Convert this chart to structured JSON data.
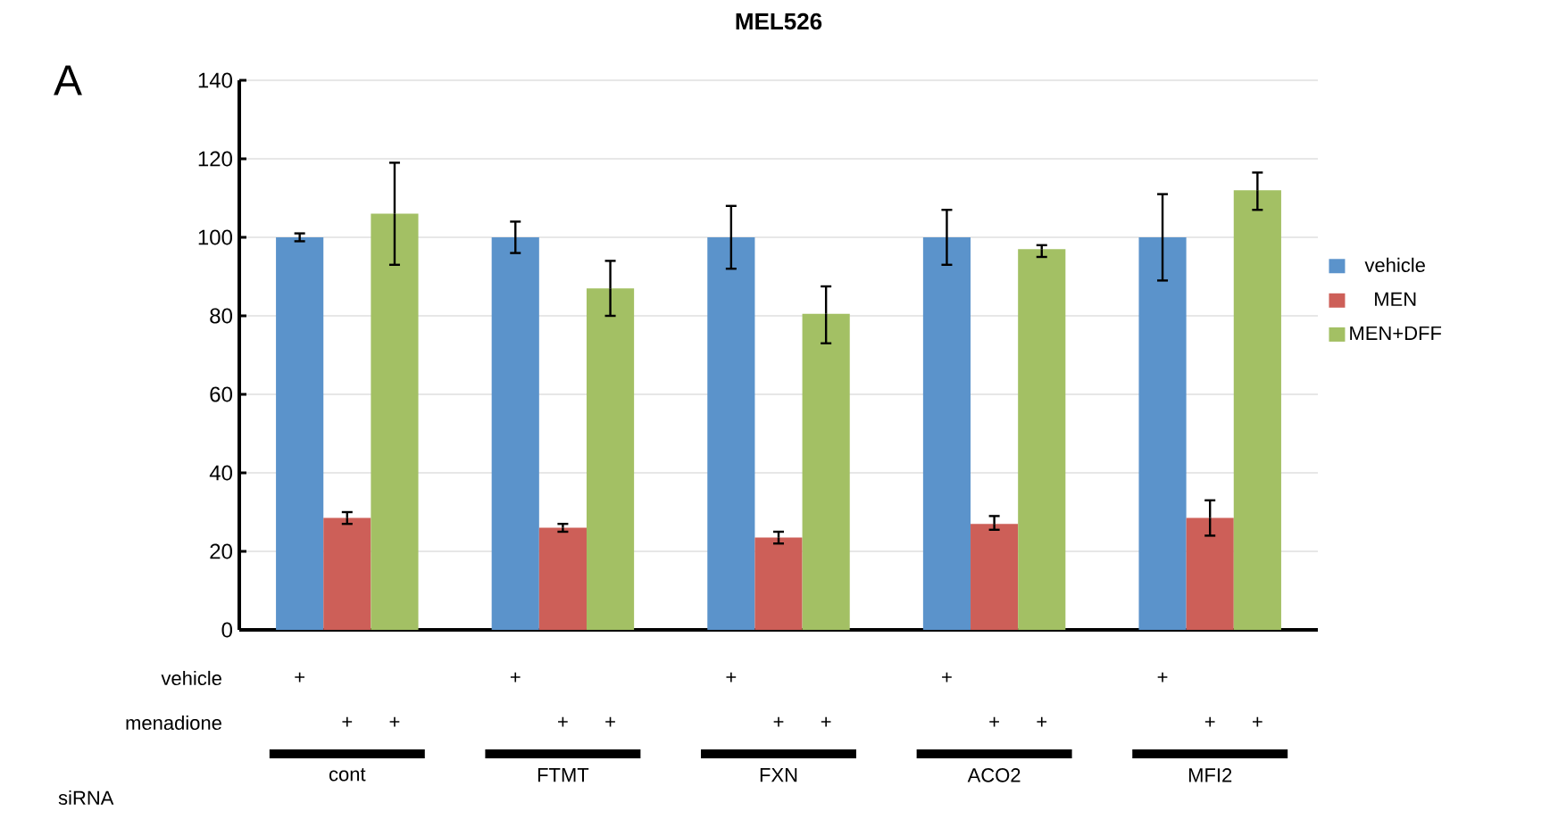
{
  "chart_data": {
    "type": "bar",
    "title": "MEL526",
    "categories": [
      "cont",
      "FTMT",
      "FXN",
      "ACO2",
      "MFI2"
    ],
    "series": [
      {
        "name": "vehicle",
        "color": "#5b93cb",
        "values": [
          100,
          100,
          100,
          100,
          100
        ],
        "errors": [
          [
            99,
            101
          ],
          [
            96,
            104
          ],
          [
            92,
            108
          ],
          [
            93,
            107
          ],
          [
            89,
            111
          ]
        ]
      },
      {
        "name": "MEN",
        "color": "#cd5f58",
        "values": [
          28.5,
          26,
          23.5,
          27,
          28.5
        ],
        "errors": [
          [
            27,
            30
          ],
          [
            25,
            27
          ],
          [
            22,
            25
          ],
          [
            25.5,
            29
          ],
          [
            24,
            33
          ]
        ]
      },
      {
        "name": "MEN+DFF",
        "color": "#a3c064",
        "values": [
          106,
          87,
          80.5,
          97,
          112
        ],
        "errors": [
          [
            93,
            119
          ],
          [
            80,
            94
          ],
          [
            73,
            87.5
          ],
          [
            95,
            98
          ],
          [
            107,
            116.5
          ]
        ]
      }
    ],
    "ylim": [
      0,
      140
    ],
    "yticks": [
      0,
      20,
      40,
      60,
      80,
      100,
      120,
      140
    ],
    "grid": "y",
    "legend": "right",
    "annotations": [
      "A",
      "vehicle",
      "menadione",
      "siRNA",
      "+",
      "+",
      "+",
      "+",
      "+",
      "+",
      "+",
      "+",
      "+",
      "+",
      "+",
      "+",
      "+",
      "+",
      "+"
    ]
  }
}
